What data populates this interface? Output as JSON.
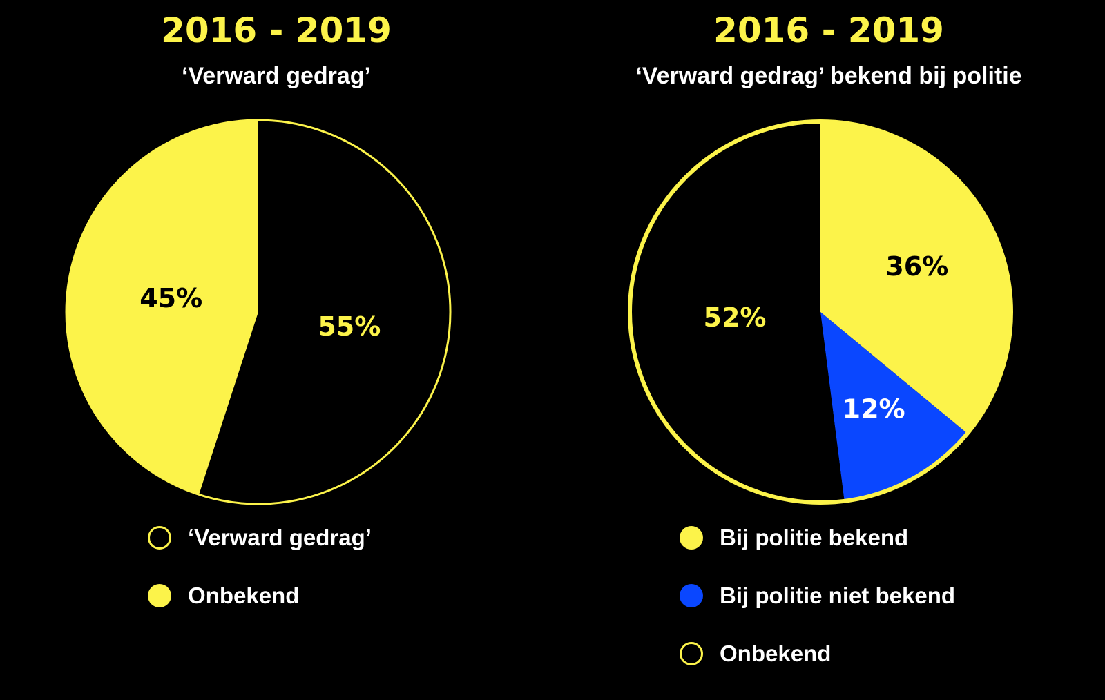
{
  "colors": {
    "background": "#000000",
    "yellow": "#fcf34a",
    "blue": "#0a47ff",
    "white": "#ffffff",
    "black": "#000000"
  },
  "chart_data": [
    {
      "type": "pie",
      "title": "2016 - 2019",
      "subtitle": "‘Verward gedrag’",
      "slices": [
        {
          "label": "‘Verward gedrag’",
          "value": 55,
          "value_label": "55%",
          "fill": "#000000",
          "text_color": "#fcf34a"
        },
        {
          "label": "Onbekend",
          "value": 45,
          "value_label": "45%",
          "fill": "#fcf34a",
          "text_color": "#000000"
        }
      ],
      "legend": [
        {
          "label": "‘Verward gedrag’",
          "style": "outline",
          "color": "#fcf34a"
        },
        {
          "label": "Onbekend",
          "style": "filled",
          "color": "#fcf34a"
        }
      ],
      "legend_position": "bottom"
    },
    {
      "type": "pie",
      "title": "2016 - 2019",
      "subtitle": "‘Verward gedrag’ bekend bij politie",
      "slices": [
        {
          "label": "Bij politie bekend",
          "value": 36,
          "value_label": "36%",
          "fill": "#fcf34a",
          "text_color": "#000000"
        },
        {
          "label": "Bij politie niet bekend",
          "value": 12,
          "value_label": "12%",
          "fill": "#0a47ff",
          "text_color": "#ffffff"
        },
        {
          "label": "Onbekend",
          "value": 52,
          "value_label": "52%",
          "fill": "#000000",
          "text_color": "#fcf34a"
        }
      ],
      "legend": [
        {
          "label": "Bij politie bekend",
          "style": "filled",
          "color": "#fcf34a"
        },
        {
          "label": "Bij politie niet bekend",
          "style": "filled",
          "color": "#0a47ff"
        },
        {
          "label": "Onbekend",
          "style": "outline",
          "color": "#fcf34a"
        }
      ],
      "legend_position": "bottom"
    }
  ]
}
